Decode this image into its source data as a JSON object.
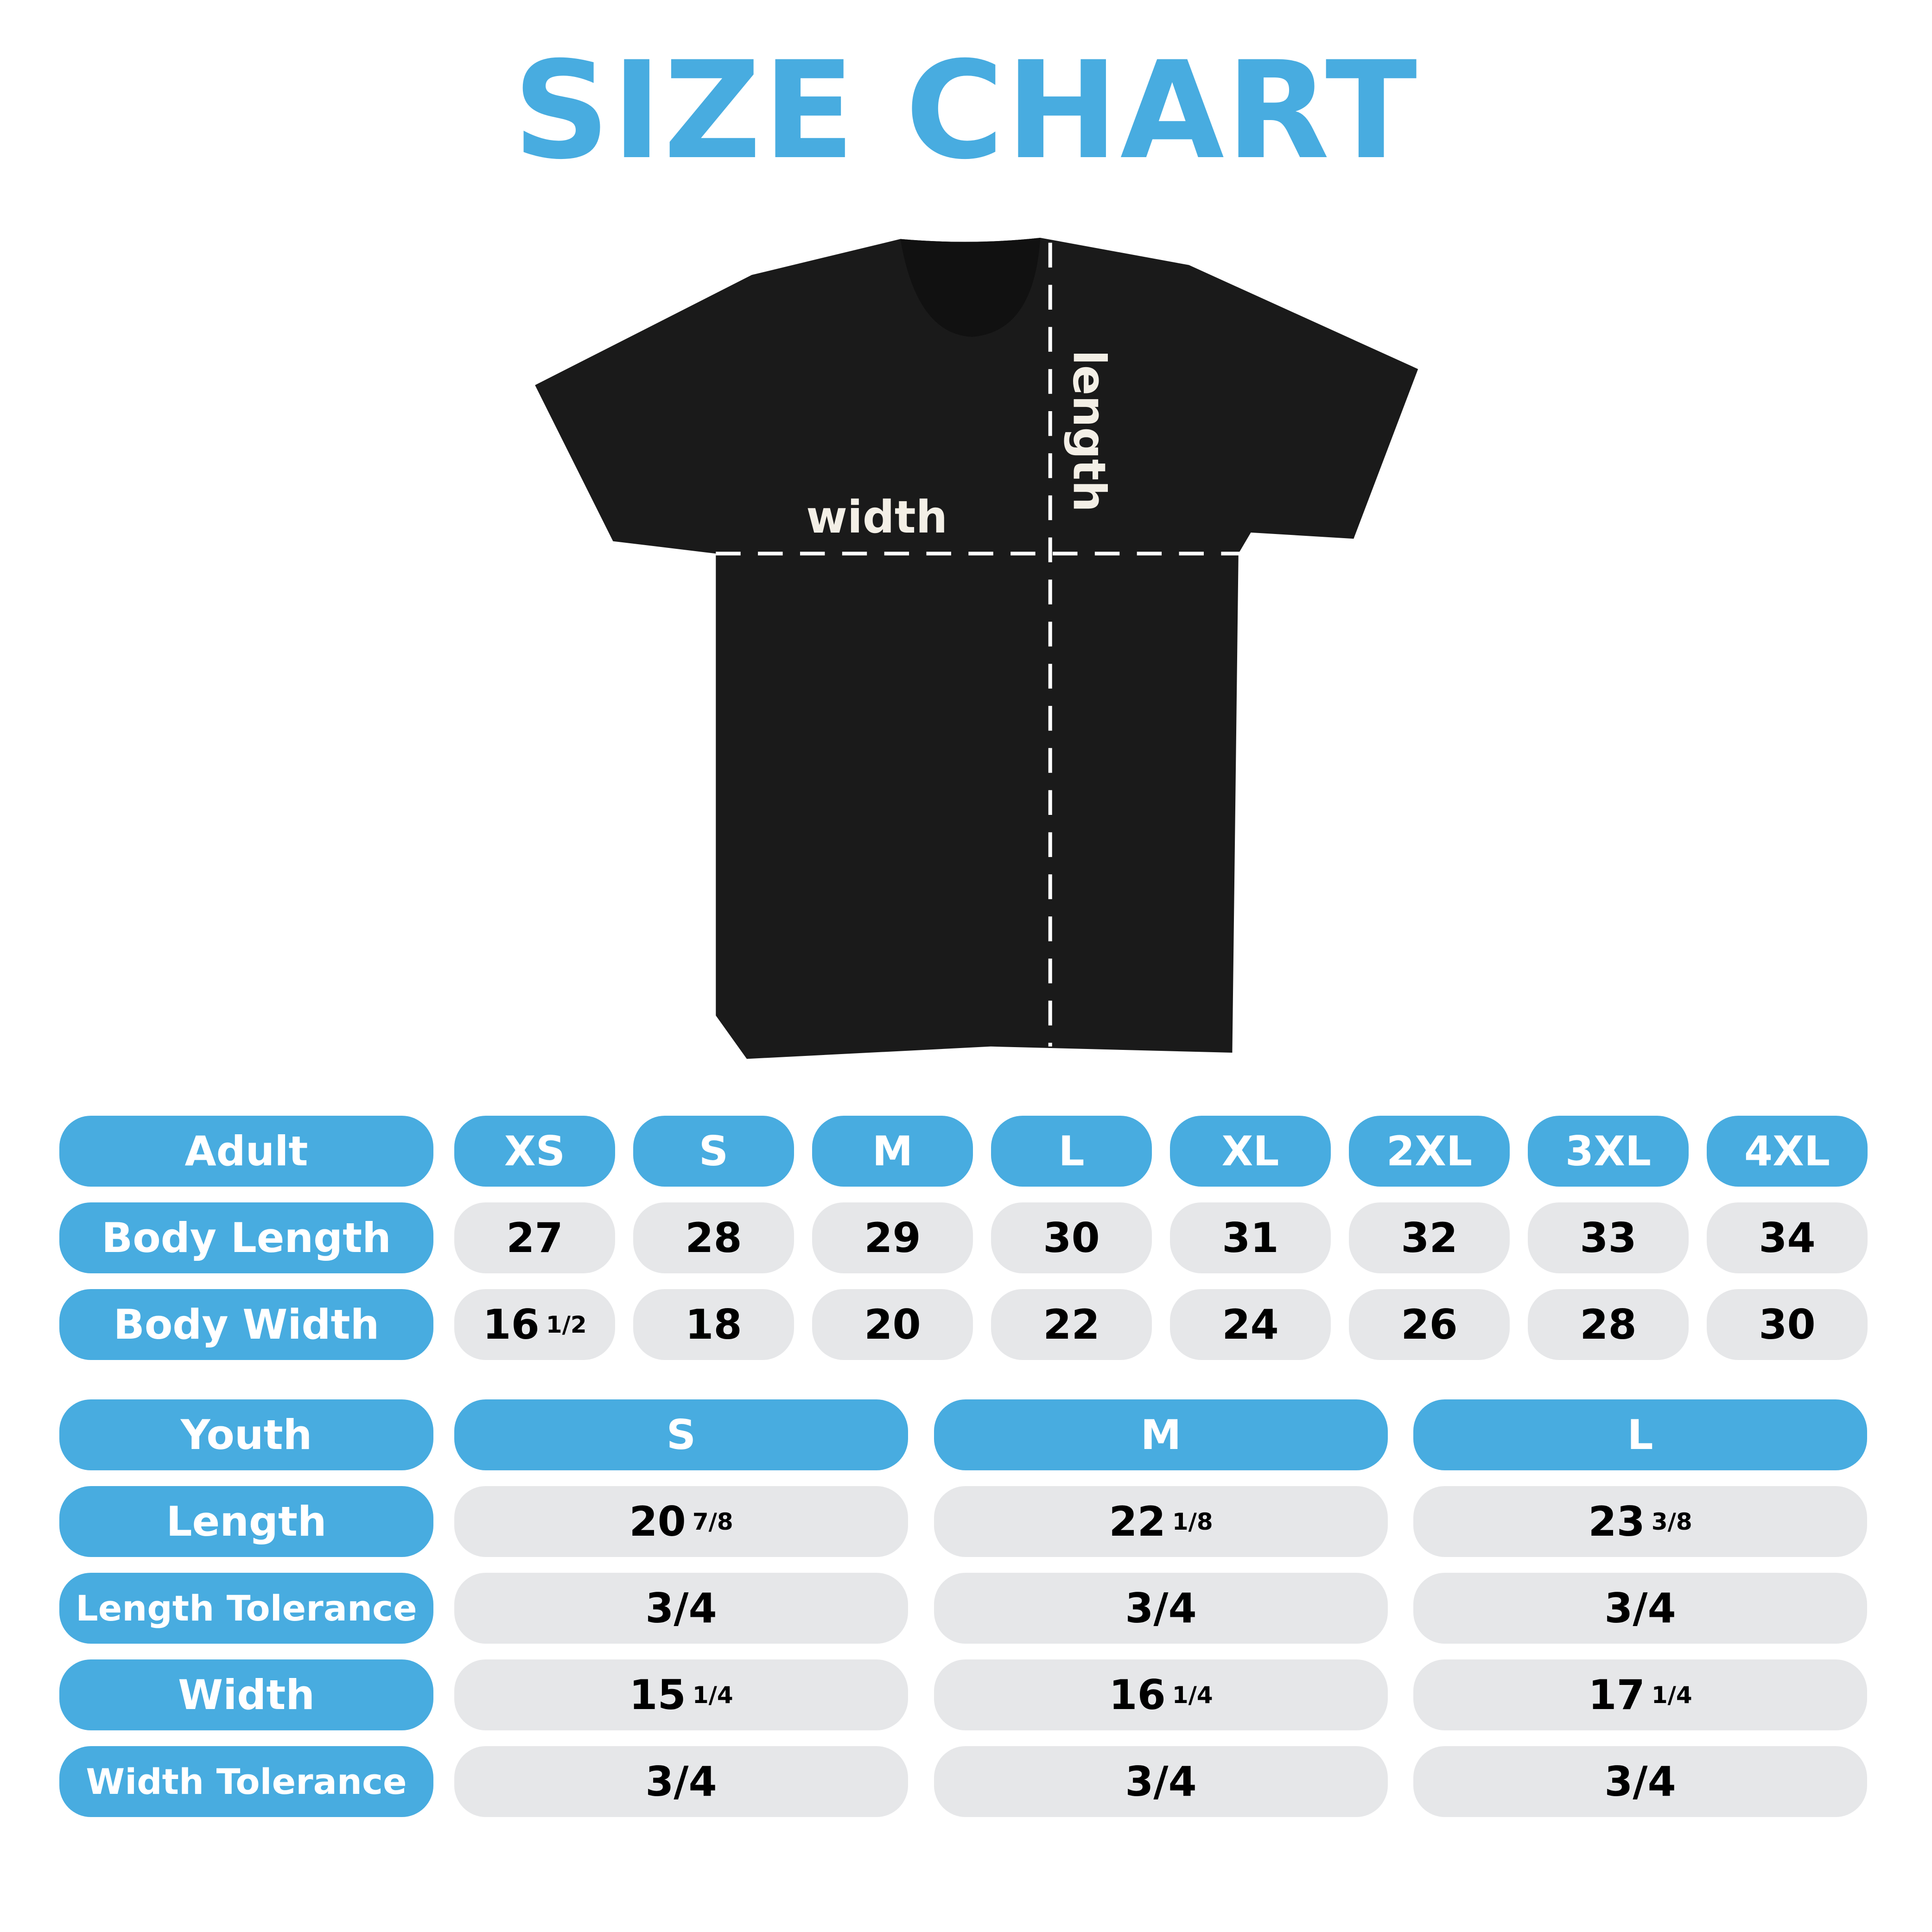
{
  "title": "SIZE CHART",
  "diagram": {
    "width_label": "width",
    "length_label": "length",
    "shirt_color": "#1a1a1a"
  },
  "colors": {
    "accent": "#48ACE0",
    "cell": "#E6E7E9"
  },
  "adult": {
    "header": "Adult",
    "sizes": [
      "XS",
      "S",
      "M",
      "L",
      "XL",
      "2XL",
      "3XL",
      "4XL"
    ],
    "rows": [
      {
        "label": "Body Length",
        "values": [
          [
            "27",
            ""
          ],
          [
            "28",
            ""
          ],
          [
            "29",
            ""
          ],
          [
            "30",
            ""
          ],
          [
            "31",
            ""
          ],
          [
            "32",
            ""
          ],
          [
            "33",
            ""
          ],
          [
            "34",
            ""
          ]
        ]
      },
      {
        "label": "Body Width",
        "values": [
          [
            "16",
            "1/2"
          ],
          [
            "18",
            ""
          ],
          [
            "20",
            ""
          ],
          [
            "22",
            ""
          ],
          [
            "24",
            ""
          ],
          [
            "26",
            ""
          ],
          [
            "28",
            ""
          ],
          [
            "30",
            ""
          ]
        ]
      }
    ]
  },
  "youth": {
    "header": "Youth",
    "sizes": [
      "S",
      "M",
      "L"
    ],
    "rows": [
      {
        "label": "Length",
        "values": [
          [
            "20",
            "7/8"
          ],
          [
            "22",
            "1/8"
          ],
          [
            "23",
            "3/8"
          ]
        ]
      },
      {
        "label": "Length Tolerance",
        "values": [
          [
            "3/4",
            ""
          ],
          [
            "3/4",
            ""
          ],
          [
            "3/4",
            ""
          ]
        ]
      },
      {
        "label": "Width",
        "values": [
          [
            "15",
            "1/4"
          ],
          [
            "16",
            "1/4"
          ],
          [
            "17",
            "1/4"
          ]
        ]
      },
      {
        "label": "Width Tolerance",
        "values": [
          [
            "3/4",
            ""
          ],
          [
            "3/4",
            ""
          ],
          [
            "3/4",
            ""
          ]
        ]
      }
    ]
  }
}
